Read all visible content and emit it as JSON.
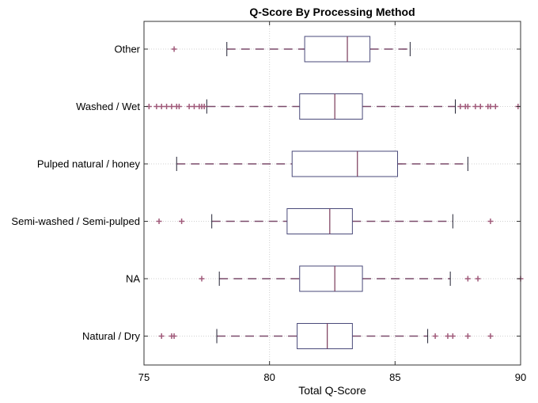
{
  "chart_data": {
    "type": "boxplot",
    "title": "Q-Score By Processing Method",
    "xlabel": "Total Q-Score",
    "ylabel": "",
    "xlim": [
      75,
      90
    ],
    "xticks": [
      75,
      80,
      85,
      90
    ],
    "grid": true,
    "orientation": "horizontal",
    "categories": [
      "Other",
      "Washed / Wet",
      "Pulped natural / honey",
      "Semi-washed / Semi-pulped",
      "NA",
      "Natural / Dry"
    ],
    "boxes": [
      {
        "category": "Other",
        "whisker_low": 78.3,
        "q1": 81.4,
        "median": 83.1,
        "q3": 84.0,
        "whisker_high": 85.6,
        "outliers": [
          76.2
        ]
      },
      {
        "category": "Washed / Wet",
        "whisker_low": 77.5,
        "q1": 81.2,
        "median": 82.6,
        "q3": 83.7,
        "whisker_high": 87.4,
        "outliers": [
          75.2,
          75.5,
          75.7,
          75.9,
          76.1,
          76.3,
          76.4,
          76.8,
          77.0,
          77.2,
          77.3,
          77.4,
          87.6,
          87.8,
          87.9,
          88.2,
          88.4,
          88.7,
          88.8,
          89.0,
          89.9
        ]
      },
      {
        "category": "Pulped natural / honey",
        "whisker_low": 76.3,
        "q1": 80.9,
        "median": 83.5,
        "q3": 85.1,
        "whisker_high": 87.9,
        "outliers": []
      },
      {
        "category": "Semi-washed / Semi-pulped",
        "whisker_low": 77.7,
        "q1": 80.7,
        "median": 82.4,
        "q3": 83.3,
        "whisker_high": 87.3,
        "outliers": [
          75.6,
          76.5,
          88.8
        ]
      },
      {
        "category": "NA",
        "whisker_low": 78.0,
        "q1": 81.2,
        "median": 82.6,
        "q3": 83.7,
        "whisker_high": 87.2,
        "outliers": [
          77.3,
          87.9,
          88.3,
          90.0
        ]
      },
      {
        "category": "Natural / Dry",
        "whisker_low": 77.9,
        "q1": 81.1,
        "median": 82.3,
        "q3": 83.3,
        "whisker_high": 86.3,
        "outliers": [
          75.7,
          76.1,
          76.2,
          86.6,
          87.1,
          87.3,
          87.9,
          88.8
        ]
      }
    ],
    "colors": {
      "box": "#4a4a7a",
      "median": "#7a3a5a",
      "whisker_dash": "#7a4a6a",
      "outlier": "#a05a7a",
      "grid": "#d0d0d0",
      "axis": "#333333"
    }
  }
}
